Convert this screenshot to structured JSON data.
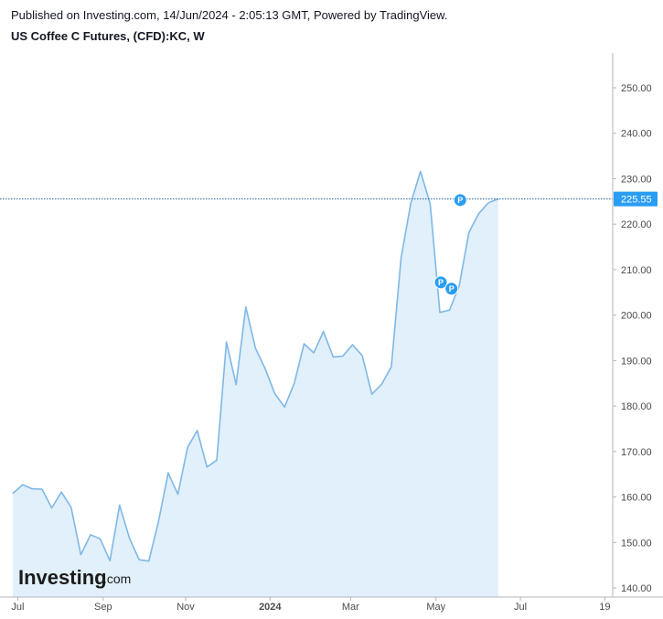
{
  "header": {
    "published": "Published on Investing.com, 14/Jun/2024 - 2:05:13 GMT, Powered by TradingView.",
    "title": "US Coffee C Futures, (CFD):KC, W"
  },
  "logo": {
    "name": "Investing",
    "suffix": ".com"
  },
  "colors": {
    "line": "#7fb8e6",
    "area": "#e1f0fa",
    "last_price_bg": "#2a9df4",
    "marker": "#2a9df4",
    "dotted_line": "#1e5fa0"
  },
  "chart_data": {
    "type": "area",
    "title": "",
    "xlabel": "",
    "ylabel": "",
    "ylim": [
      137.5,
      257.5
    ],
    "ytick_labels": [
      "250.00",
      "240.00",
      "230.00",
      "220.00",
      "210.00",
      "200.00",
      "190.00",
      "180.00",
      "170.00",
      "160.00",
      "150.00",
      "140.00"
    ],
    "ytick_values": [
      250,
      240,
      230,
      220,
      210,
      200,
      190,
      180,
      170,
      160,
      150,
      140
    ],
    "xtick_labels": [
      {
        "label": "Jul",
        "week": 0.5,
        "bold": false
      },
      {
        "label": "Sep",
        "week": 9.3,
        "bold": false
      },
      {
        "label": "Nov",
        "week": 17.8,
        "bold": false
      },
      {
        "label": "2024",
        "week": 26.5,
        "bold": true
      },
      {
        "label": "Mar",
        "week": 34.8,
        "bold": false
      },
      {
        "label": "May",
        "week": 43.6,
        "bold": false
      },
      {
        "label": "Jul",
        "week": 52.3,
        "bold": false
      },
      {
        "label": "19",
        "week": 61.0,
        "bold": false
      }
    ],
    "xlim": [
      -0.2,
      62.0
    ],
    "series": [
      {
        "values": [
          160.8,
          162.7,
          161.8,
          161.7,
          157.6,
          161.1,
          157.7,
          147.3,
          151.7,
          150.8,
          146.0,
          158.2,
          151.0,
          146.2,
          145.9,
          154.6,
          165.3,
          160.6,
          170.9,
          174.6,
          166.6,
          168.1,
          194.1,
          184.7,
          201.8,
          192.7,
          188.2,
          182.7,
          179.8,
          185.0,
          193.7,
          191.7,
          196.4,
          190.8,
          191.0,
          193.5,
          191.1,
          182.6,
          184.8,
          188.6,
          212.6,
          224.6,
          231.6,
          224.5,
          200.6,
          201.1,
          206.5,
          218.2,
          222.3,
          224.7,
          225.55
        ]
      }
    ],
    "last_price": {
      "value": 225.55,
      "label": "225.55"
    },
    "markers": [
      {
        "label": "P",
        "week": 44.1,
        "value": 207.2
      },
      {
        "label": "P",
        "week": 45.2,
        "value": 205.8
      },
      {
        "label": "P",
        "week": 46.1,
        "value": 225.3
      }
    ]
  }
}
